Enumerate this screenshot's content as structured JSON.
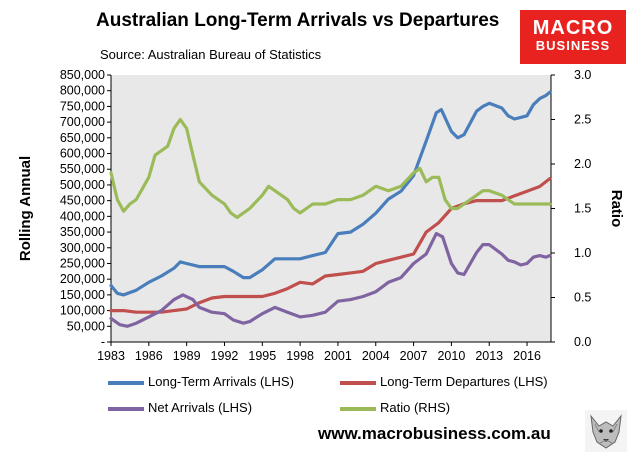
{
  "header": {
    "title": "Australian Long-Term Arrivals vs Departures",
    "source": "Source: Australian Bureau of Statistics"
  },
  "logo": {
    "line1": "MACRO",
    "line2": "BUSINESS"
  },
  "footer": {
    "website": "www.macrobusiness.com.au"
  },
  "colors": {
    "arrivals": "#4a7ebb",
    "departures": "#c0504d",
    "net": "#8064a2",
    "ratio": "#9bbb59",
    "plot_bg": "#e8e8e8",
    "brand": "#e8231f"
  },
  "chart_data": {
    "type": "line",
    "ylabel": "Rolling Annual",
    "y2label": "Ratio",
    "ylim": [
      0,
      850000
    ],
    "y2lim": [
      0,
      3.0
    ],
    "xlim": [
      1983,
      2017.9
    ],
    "yticks": [
      "-",
      "50,000",
      "100,000",
      "150,000",
      "200,000",
      "250,000",
      "300,000",
      "350,000",
      "400,000",
      "450,000",
      "500,000",
      "550,000",
      "600,000",
      "650,000",
      "700,000",
      "750,000",
      "800,000",
      "850,000"
    ],
    "y2ticks": [
      "0.0",
      "0.5",
      "1.0",
      "1.5",
      "2.0",
      "2.5",
      "3.0"
    ],
    "xticks": [
      "1983",
      "1986",
      "1989",
      "1992",
      "1995",
      "1998",
      "2001",
      "2004",
      "2007",
      "2010",
      "2013",
      "2016"
    ],
    "grid": false,
    "legend_position": "bottom",
    "series": [
      {
        "name": "Long-Term Arrivals (LHS)",
        "axis": "left",
        "x": [
          1983,
          1983.5,
          1984,
          1985,
          1986,
          1987,
          1988,
          1988.5,
          1989,
          1990,
          1991,
          1992,
          1992.7,
          1993.5,
          1994,
          1995,
          1996,
          1997,
          1998,
          1999,
          2000,
          2001,
          2002,
          2003,
          2004,
          2005,
          2006,
          2007,
          2008,
          2008.8,
          2009.2,
          2010,
          2010.5,
          2011,
          2012,
          2012.5,
          2013,
          2014,
          2014.5,
          2015,
          2015.5,
          2016,
          2016.5,
          2017,
          2017.5,
          2017.8
        ],
        "values": [
          180000,
          155000,
          150000,
          165000,
          190000,
          210000,
          235000,
          255000,
          250000,
          240000,
          240000,
          240000,
          225000,
          205000,
          205000,
          230000,
          265000,
          265000,
          265000,
          275000,
          285000,
          345000,
          350000,
          375000,
          410000,
          455000,
          480000,
          530000,
          640000,
          730000,
          740000,
          670000,
          650000,
          660000,
          735000,
          750000,
          760000,
          745000,
          720000,
          710000,
          715000,
          720000,
          755000,
          775000,
          785000,
          795000
        ]
      },
      {
        "name": "Long-Term Departures (LHS)",
        "axis": "left",
        "x": [
          1983,
          1984,
          1985,
          1986,
          1987,
          1988,
          1989,
          1990,
          1991,
          1992,
          1993,
          1994,
          1995,
          1996,
          1997,
          1998,
          1999,
          2000,
          2001,
          2002,
          2003,
          2004,
          2005,
          2006,
          2007,
          2007.5,
          2008,
          2009,
          2010,
          2011,
          2012,
          2013,
          2014,
          2015,
          2016,
          2017,
          2017.8
        ],
        "values": [
          100000,
          100000,
          95000,
          95000,
          95000,
          100000,
          105000,
          125000,
          140000,
          145000,
          145000,
          145000,
          145000,
          155000,
          170000,
          190000,
          185000,
          210000,
          215000,
          220000,
          225000,
          250000,
          260000,
          270000,
          280000,
          315000,
          350000,
          380000,
          425000,
          440000,
          450000,
          450000,
          450000,
          465000,
          480000,
          495000,
          520000
        ]
      },
      {
        "name": "Net Arrivals (LHS)",
        "axis": "left",
        "x": [
          1983,
          1983.7,
          1984.3,
          1985,
          1986,
          1987,
          1988,
          1988.7,
          1989.5,
          1990,
          1991,
          1992,
          1992.7,
          1993.5,
          1994,
          1995,
          1996,
          1997,
          1998,
          1999,
          2000,
          2001,
          2002,
          2003,
          2004,
          2005,
          2006,
          2007,
          2008,
          2008.8,
          2009.3,
          2010,
          2010.5,
          2011,
          2012,
          2012.5,
          2013,
          2014,
          2014.5,
          2015,
          2015.5,
          2016,
          2016.5,
          2017,
          2017.5,
          2017.8
        ],
        "values": [
          75000,
          55000,
          50000,
          60000,
          80000,
          100000,
          135000,
          150000,
          135000,
          110000,
          95000,
          90000,
          70000,
          60000,
          65000,
          90000,
          110000,
          95000,
          80000,
          85000,
          95000,
          130000,
          135000,
          145000,
          160000,
          190000,
          205000,
          250000,
          280000,
          345000,
          335000,
          250000,
          220000,
          215000,
          285000,
          310000,
          310000,
          280000,
          260000,
          255000,
          245000,
          250000,
          270000,
          275000,
          270000,
          275000
        ]
      },
      {
        "name": "Ratio (RHS)",
        "axis": "right",
        "x": [
          1983,
          1983.5,
          1984,
          1984.5,
          1985,
          1986,
          1986.5,
          1987,
          1987.5,
          1988,
          1988.5,
          1989,
          1989.5,
          1990,
          1991,
          1992,
          1992.5,
          1993,
          1994,
          1995,
          1995.5,
          1996,
          1997,
          1997.5,
          1998,
          1998.5,
          1999,
          2000,
          2001,
          2002,
          2003,
          2004,
          2005,
          2006,
          2007,
          2007.5,
          2008,
          2008.5,
          2009,
          2009.5,
          2010,
          2010.5,
          2011,
          2012,
          2012.5,
          2013,
          2014,
          2015,
          2016,
          2017,
          2017.8
        ],
        "values": [
          1.9,
          1.6,
          1.47,
          1.55,
          1.6,
          1.85,
          2.1,
          2.15,
          2.2,
          2.4,
          2.5,
          2.4,
          2.1,
          1.8,
          1.65,
          1.55,
          1.45,
          1.4,
          1.5,
          1.65,
          1.75,
          1.7,
          1.6,
          1.5,
          1.45,
          1.5,
          1.55,
          1.55,
          1.6,
          1.6,
          1.65,
          1.75,
          1.7,
          1.75,
          1.9,
          1.95,
          1.8,
          1.85,
          1.85,
          1.6,
          1.5,
          1.5,
          1.55,
          1.65,
          1.7,
          1.7,
          1.65,
          1.55,
          1.55,
          1.55,
          1.55
        ]
      }
    ]
  }
}
